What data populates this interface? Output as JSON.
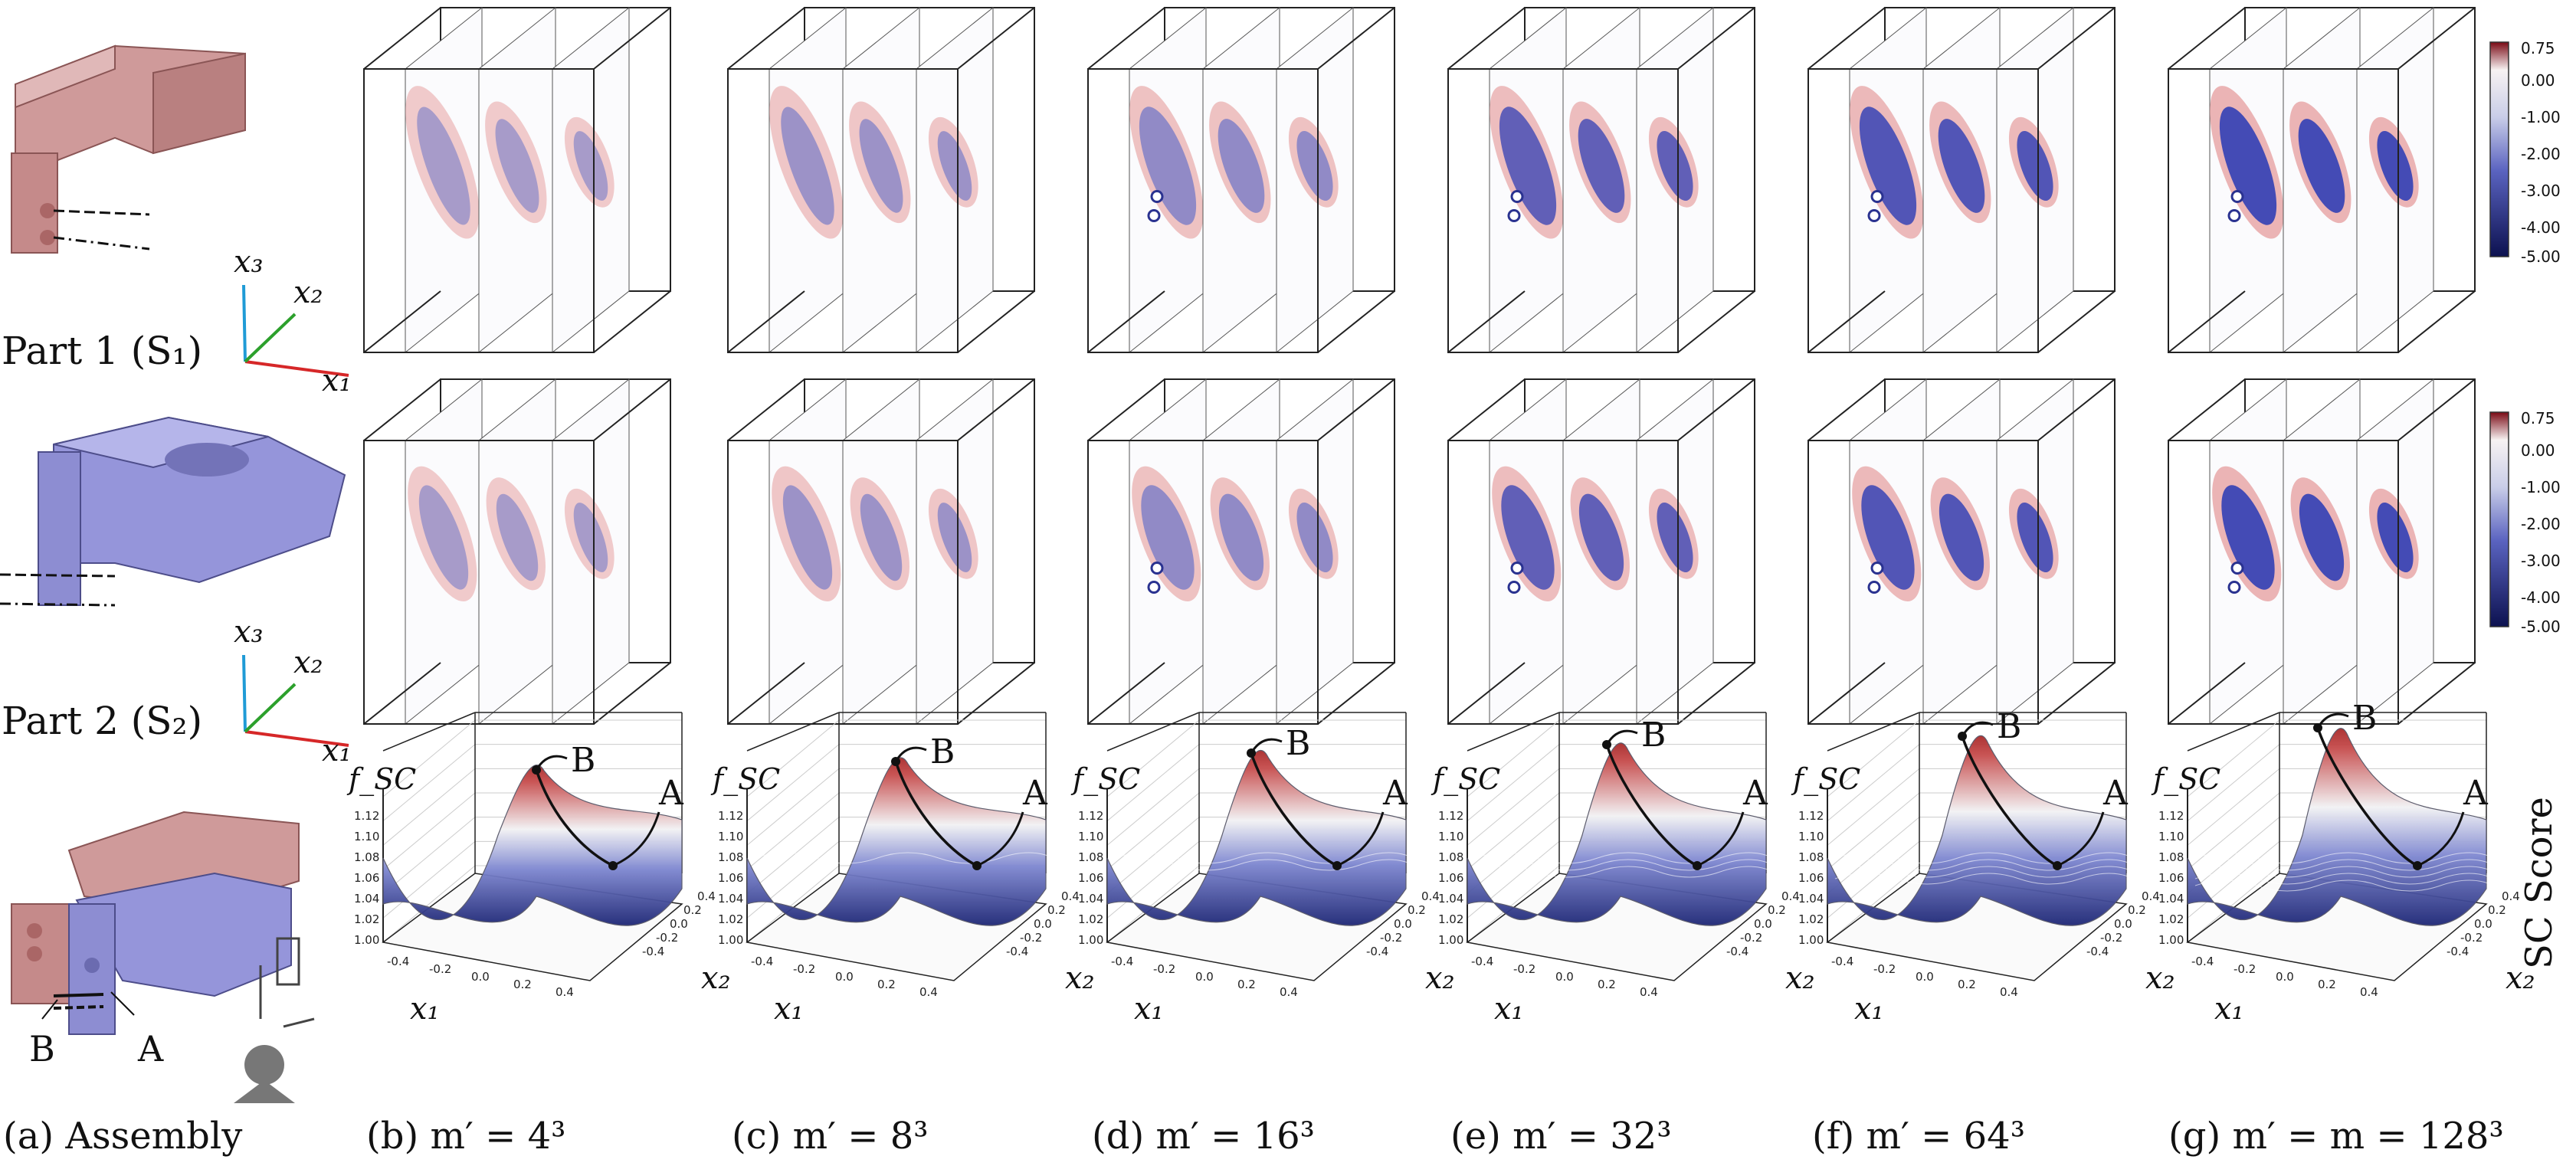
{
  "figure": {
    "captions": [
      "(a) Assembly",
      "(b) m′ = 4³",
      "(c) m′ = 8³",
      "(d) m′ = 16³",
      "(e) m′ = 32³",
      "(f) m′ = 64³",
      "(g) m′ = m = 128³"
    ],
    "resolutions": [
      "4³",
      "8³",
      "16³",
      "32³",
      "64³",
      "128³"
    ],
    "parts": [
      {
        "label": "Part 1 (S₁)",
        "color": "#c98a8a"
      },
      {
        "label": "Part 2 (S₂)",
        "color": "#8f8fd6"
      }
    ],
    "axes": {
      "x1": "x₁",
      "x2": "x₂",
      "x3": "x₃",
      "x1_color": "#d62728",
      "x2_color": "#2ca02c",
      "x3_color": "#1f9bd6"
    },
    "assembly_markers": {
      "a": "A",
      "b": "B"
    },
    "surface": {
      "z_label": "f_SC",
      "z_ticks": [
        "1.12",
        "1.10",
        "1.08",
        "1.06",
        "1.04",
        "1.02",
        "1.00"
      ],
      "x1_ticks": [
        "-0.4",
        "-0.2",
        "0.0",
        "0.2",
        "0.4"
      ],
      "x2_ticks": [
        "0.4",
        "0.2",
        "0.0",
        "-0.2",
        "-0.4"
      ],
      "point_labels": {
        "a": "A",
        "b": "B"
      },
      "score_label": "SC Score"
    },
    "colorbar": {
      "ticks": [
        "0.75",
        "0.00",
        "-1.00",
        "-2.00",
        "-3.00",
        "-4.00",
        "-5.00"
      ],
      "color_high": "#7a0a15",
      "color_mid": "#ffffff",
      "color_low": "#0c1150"
    }
  }
}
